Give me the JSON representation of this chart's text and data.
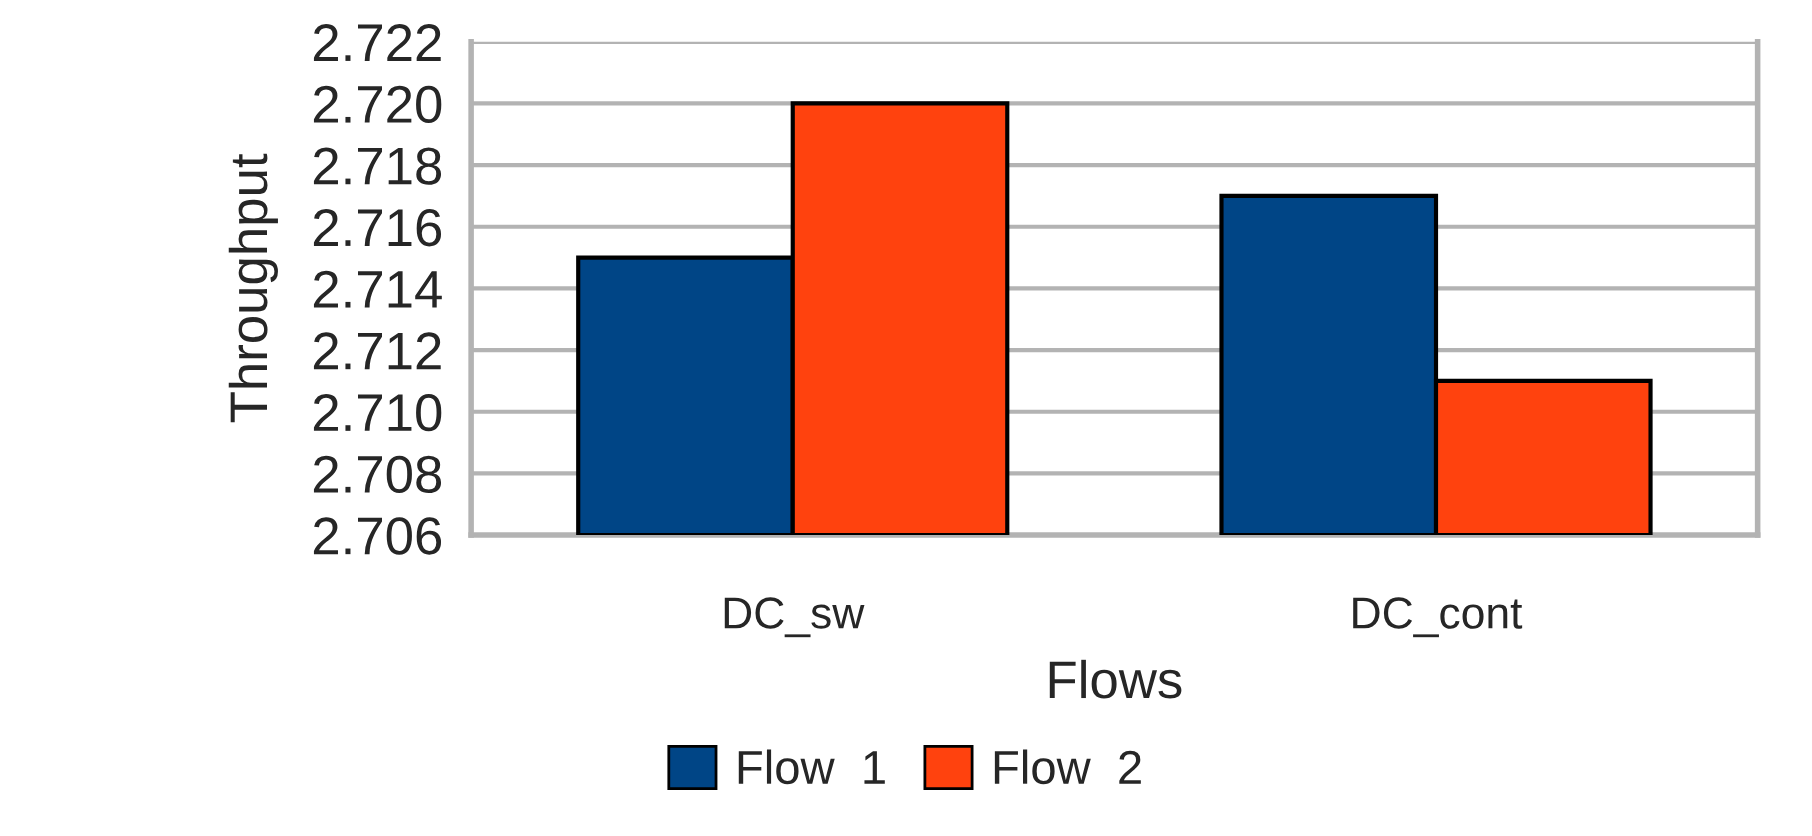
{
  "chart_data": {
    "type": "bar",
    "xlabel": "Flows",
    "ylabel": "Throughput",
    "categories": [
      "DC_sw",
      "DC_cont"
    ],
    "series": [
      {
        "name": "Flow  1",
        "color": "#004586",
        "values": [
          2.715,
          2.717
        ]
      },
      {
        "name": "Flow  2",
        "color": "#ff420e",
        "values": [
          2.72,
          2.711
        ]
      }
    ],
    "ylim": [
      2.706,
      2.722
    ],
    "yticks": [
      {
        "value": 2.706,
        "label": "2.706"
      },
      {
        "value": 2.708,
        "label": "2.708"
      },
      {
        "value": 2.71,
        "label": "2.710"
      },
      {
        "value": 2.712,
        "label": "2.712"
      },
      {
        "value": 2.714,
        "label": "2.714"
      },
      {
        "value": 2.716,
        "label": "2.716"
      },
      {
        "value": 2.718,
        "label": "2.718"
      },
      {
        "value": 2.72,
        "label": "2.720"
      },
      {
        "value": 2.722,
        "label": "2.722"
      }
    ],
    "grid": "y",
    "legend": "bottom"
  }
}
